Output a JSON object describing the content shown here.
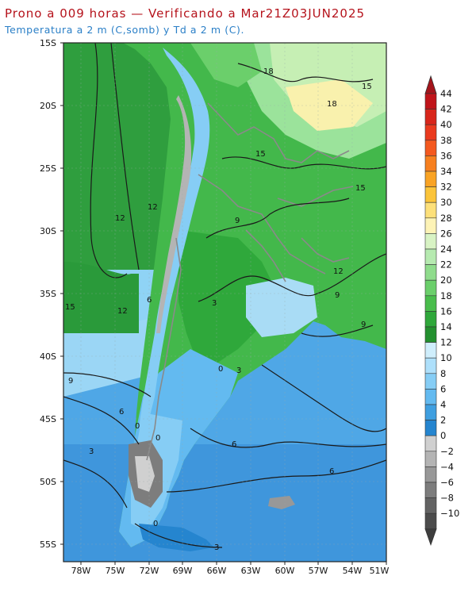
{
  "header": {
    "title": "Prono a 009 horas — Verificando a Mar21Z03JUN2025",
    "subtitle": "Temperatura a 2 m (C,somb) y Td a 2 m (C)."
  },
  "map": {
    "lat_labels": [
      "15S",
      "20S",
      "25S",
      "30S",
      "35S",
      "40S",
      "45S",
      "50S",
      "55S"
    ],
    "lon_labels": [
      "78W",
      "75W",
      "72W",
      "69W",
      "66W",
      "63W",
      "60W",
      "57W",
      "54W",
      "51W"
    ],
    "contour_labels": [
      "18",
      "18",
      "15",
      "15",
      "15",
      "12",
      "12",
      "12",
      "9",
      "9",
      "9",
      "6",
      "6",
      "6",
      "3",
      "3",
      "3",
      "0",
      "0",
      "0",
      "15",
      "12",
      "9",
      "6",
      "3",
      "0"
    ]
  },
  "colorbar": {
    "labels": [
      "44",
      "42",
      "40",
      "38",
      "36",
      "34",
      "32",
      "30",
      "28",
      "26",
      "24",
      "22",
      "20",
      "18",
      "16",
      "14",
      "12",
      "10",
      "8",
      "6",
      "4",
      "2",
      "0",
      "−2",
      "−4",
      "−6",
      "−8",
      "−10"
    ],
    "colors": [
      "#c0141a",
      "#d8261b",
      "#ea3a1e",
      "#f4591f",
      "#f7801f",
      "#f9a324",
      "#fbc43a",
      "#fde07a",
      "#fdf3b6",
      "#d8f3c4",
      "#b6eab0",
      "#8fdc8c",
      "#6bcf6b",
      "#49bd4c",
      "#2fa83b",
      "#23902f",
      "#cfeefc",
      "#aee0fb",
      "#86cdf5",
      "#63baf0",
      "#3f9fe0",
      "#2585cf",
      "#d0d0d0",
      "#b4b4b4",
      "#989898",
      "#7d7d7d",
      "#636363",
      "#4c4c4c"
    ]
  }
}
